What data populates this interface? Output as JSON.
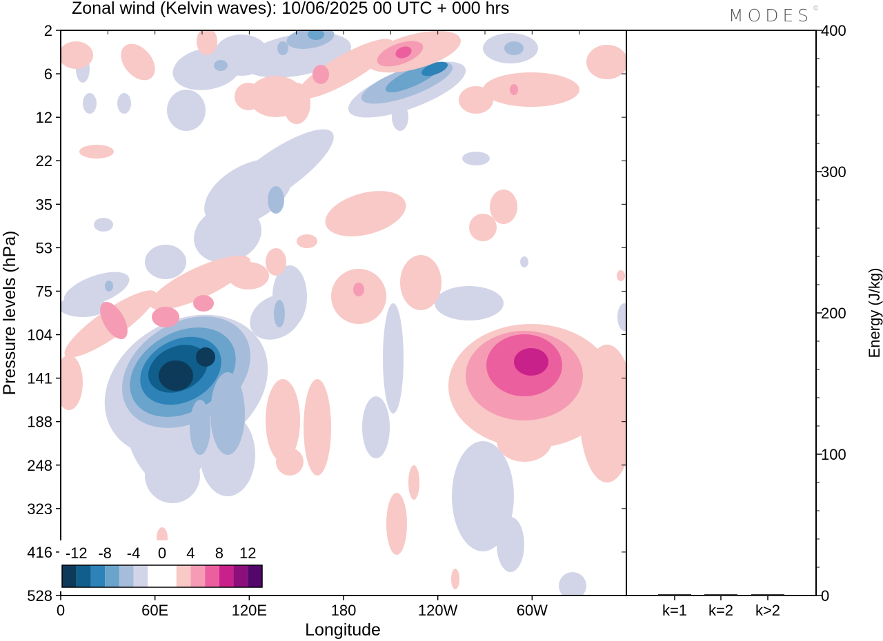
{
  "header": {
    "title": "Zonal wind (Kelvin waves):  10/06/2025  00 UTC  + 000 hrs",
    "brand": "MODES"
  },
  "colors": {
    "neg_12": "#0e3a5a",
    "neg_10": "#0f5e8c",
    "neg_8": "#2d82b8",
    "neg_6": "#6aa3cb",
    "neg_4": "#a6bcdb",
    "neg_2": "#d2d5e8",
    "zero": "#ffffff",
    "pos_2": "#f8c9c6",
    "pos_4": "#f59cb4",
    "pos_6": "#ec5f9e",
    "pos_8": "#c9218a",
    "pos_10": "#8c0f7c",
    "pos_12": "#53076a"
  },
  "chart_data": [
    {
      "type": "heatmap",
      "title": "Zonal wind (Kelvin waves):  10/06/2025  00 UTC  + 000 hrs",
      "xlabel": "Longitude",
      "ylabel": "Pressure levels (hPa)",
      "x_ticks": [
        "0",
        "60E",
        "120E",
        "180",
        "120W",
        "60W"
      ],
      "x_tick_values": [
        0,
        60,
        120,
        180,
        240,
        300
      ],
      "xlim": [
        0,
        360
      ],
      "y_ticks": [
        2,
        6,
        12,
        22,
        35,
        53,
        75,
        104,
        141,
        188,
        248,
        323,
        416,
        528
      ],
      "y_scale": "pressure-level index (top 2 hPa, bottom 528 hPa)",
      "colorbar_labels": [
        "-12",
        "-8",
        "-4",
        "0",
        "4",
        "8",
        "12"
      ],
      "colorbar_levels": [
        -12,
        -10,
        -8,
        -6,
        -4,
        -2,
        0,
        2,
        4,
        6,
        8,
        10,
        12
      ],
      "legend_position": "bottom-left",
      "features": [
        {
          "sign": -1,
          "peak": -12,
          "lon": 75,
          "level": 141
        },
        {
          "sign": -1,
          "peak": -10,
          "lon": 95,
          "level": 141
        },
        {
          "sign": 1,
          "peak": 8,
          "lon": 295,
          "level": 141
        },
        {
          "sign": 1,
          "peak": 6,
          "lon": 90,
          "level": 75
        },
        {
          "sign": 1,
          "peak": 6,
          "lon": 35,
          "level": 104
        },
        {
          "sign": -1,
          "peak": -6,
          "lon": 225,
          "level": 6
        },
        {
          "sign": 1,
          "peak": 6,
          "lon": 215,
          "level": 2
        },
        {
          "sign": -1,
          "peak": -4,
          "lon": 135,
          "level": 35
        },
        {
          "sign": 1,
          "peak": 4,
          "lon": 190,
          "level": 75
        },
        {
          "sign": 1,
          "peak": 2,
          "lon": 140,
          "level": 188
        },
        {
          "sign": -1,
          "peak": -2,
          "lon": 275,
          "level": 323
        }
      ]
    },
    {
      "type": "bar",
      "ylabel": "Energy (J/kg)",
      "categories": [
        "k=1",
        "k=2",
        "k>2"
      ],
      "values": [
        0.5,
        0.3,
        0.4
      ],
      "ylim": [
        0,
        400
      ],
      "y_ticks": [
        0,
        100,
        200,
        300,
        400
      ]
    }
  ]
}
